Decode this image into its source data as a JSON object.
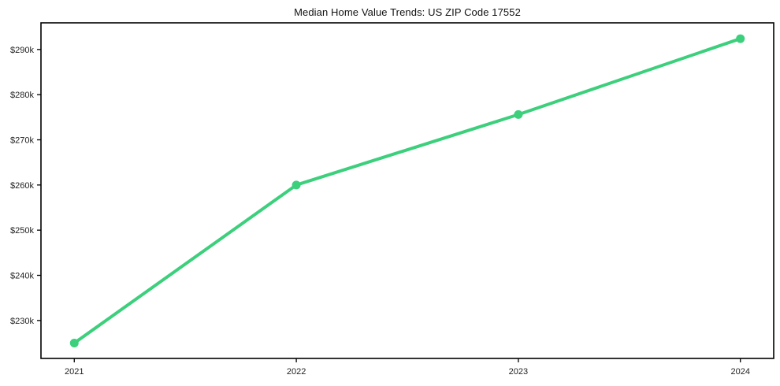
{
  "chart_data": {
    "type": "line",
    "title": "Median Home Value Trends: US ZIP Code 17552",
    "x": [
      2021,
      2022,
      2023,
      2024
    ],
    "values": [
      225000,
      260000,
      275600,
      292400
    ],
    "x_ticks": [
      {
        "value": 2021,
        "label": "2021"
      },
      {
        "value": 2022,
        "label": "2022"
      },
      {
        "value": 2023,
        "label": "2023"
      },
      {
        "value": 2024,
        "label": "2024"
      }
    ],
    "y_ticks": [
      {
        "value": 230000,
        "label": "$230k"
      },
      {
        "value": 240000,
        "label": "$240k"
      },
      {
        "value": 250000,
        "label": "$250k"
      },
      {
        "value": 260000,
        "label": "$260k"
      },
      {
        "value": 270000,
        "label": "$270k"
      },
      {
        "value": 280000,
        "label": "$280k"
      },
      {
        "value": 290000,
        "label": "$290k"
      }
    ],
    "xlim": [
      2020.85,
      2024.15
    ],
    "ylim": [
      221600,
      295900
    ],
    "xlabel": "",
    "ylabel": "",
    "grid": false,
    "legend": false,
    "marker": "circle",
    "line_color": "#3ccf7c",
    "line_width": 4,
    "marker_radius": 5.5,
    "axis_color": "#000000",
    "tick_label_color": "#1f1f1f",
    "background_color": "#ffffff"
  }
}
